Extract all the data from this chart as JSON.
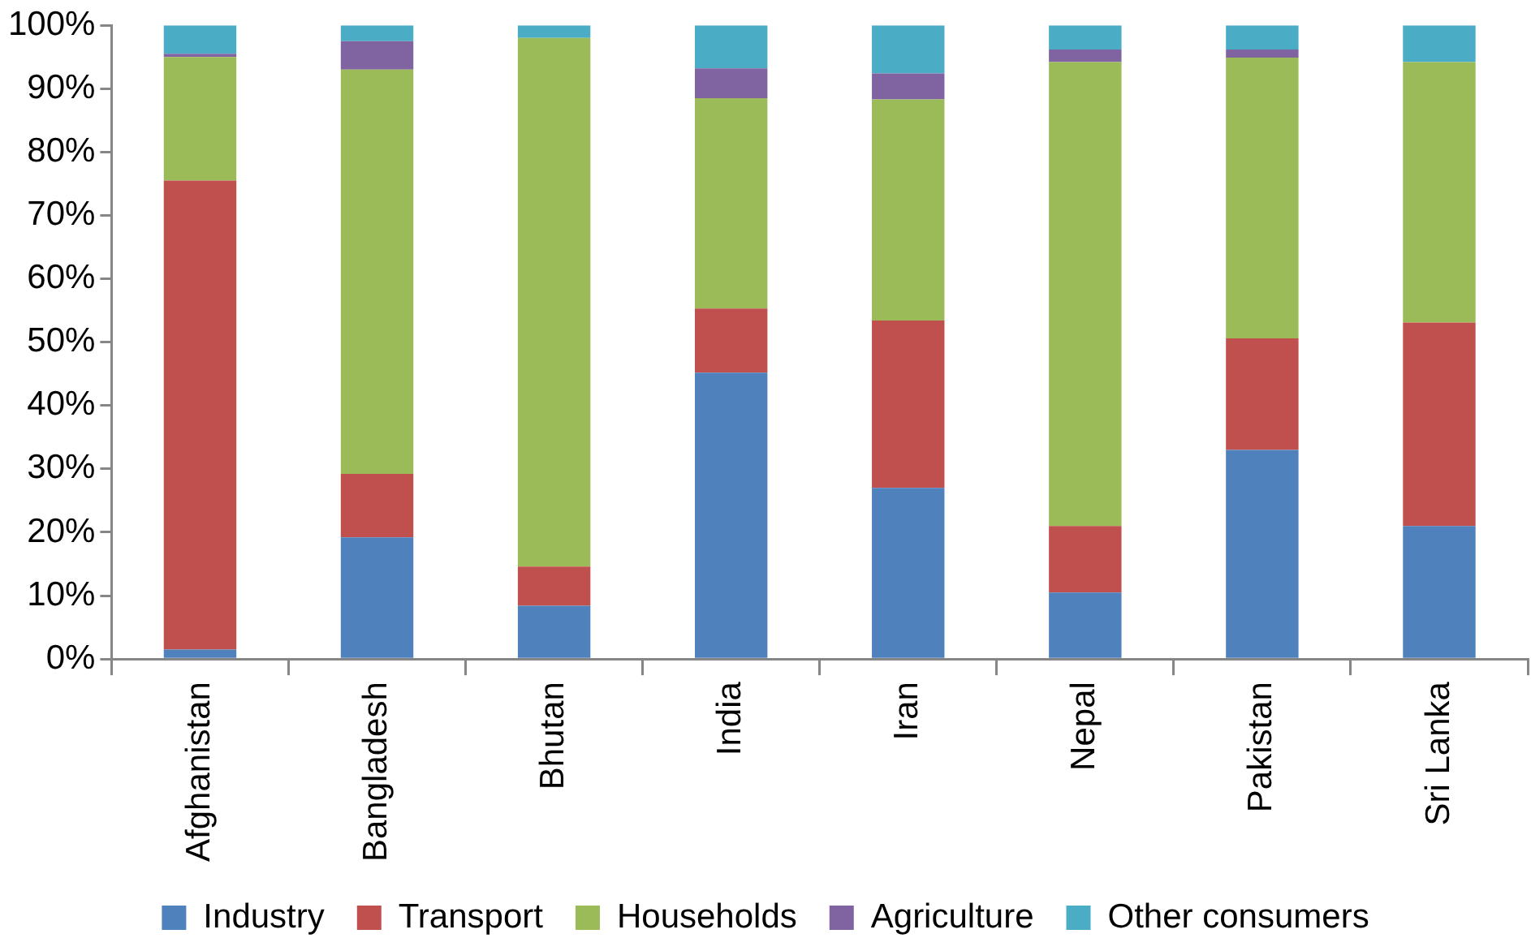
{
  "chart_data": {
    "type": "bar",
    "stacked": true,
    "categories": [
      "Afghanistan",
      "Bangladesh",
      "Bhutan",
      "India",
      "Iran",
      "Nepal",
      "Pakistan",
      "Sri Lanka"
    ],
    "series": [
      {
        "name": "Industry",
        "color": "#4f81bd",
        "values": [
          1.5,
          19.2,
          8.4,
          45.2,
          27,
          10.5,
          33,
          21
        ]
      },
      {
        "name": "Transport",
        "color": "#c0504d",
        "values": [
          74,
          10,
          6.2,
          10.1,
          26.4,
          10.5,
          17.6,
          32.1
        ]
      },
      {
        "name": "Households",
        "color": "#9bbb59",
        "values": [
          19.5,
          63.8,
          83.4,
          33.2,
          34.9,
          73.2,
          44.3,
          41.1
        ]
      },
      {
        "name": "Agriculture",
        "color": "#8064a2",
        "values": [
          0.5,
          4.5,
          0,
          4.7,
          4.1,
          2,
          1.3,
          0
        ]
      },
      {
        "name": "Other consumers",
        "color": "#4bacc6",
        "values": [
          4.5,
          2.5,
          2,
          6.8,
          7.6,
          3.8,
          3.8,
          5.8
        ]
      }
    ],
    "ylim": [
      0,
      100
    ],
    "yticks": [
      {
        "value": 0,
        "label": "0%"
      },
      {
        "value": 10,
        "label": "10%"
      },
      {
        "value": 20,
        "label": "20%"
      },
      {
        "value": 30,
        "label": "30%"
      },
      {
        "value": 40,
        "label": "40%"
      },
      {
        "value": 50,
        "label": "50%"
      },
      {
        "value": 60,
        "label": "60%"
      },
      {
        "value": 70,
        "label": "70%"
      },
      {
        "value": 80,
        "label": "80%"
      },
      {
        "value": 90,
        "label": "90%"
      },
      {
        "value": 100,
        "label": "100%"
      }
    ],
    "grid": false,
    "legend": "bottom"
  }
}
